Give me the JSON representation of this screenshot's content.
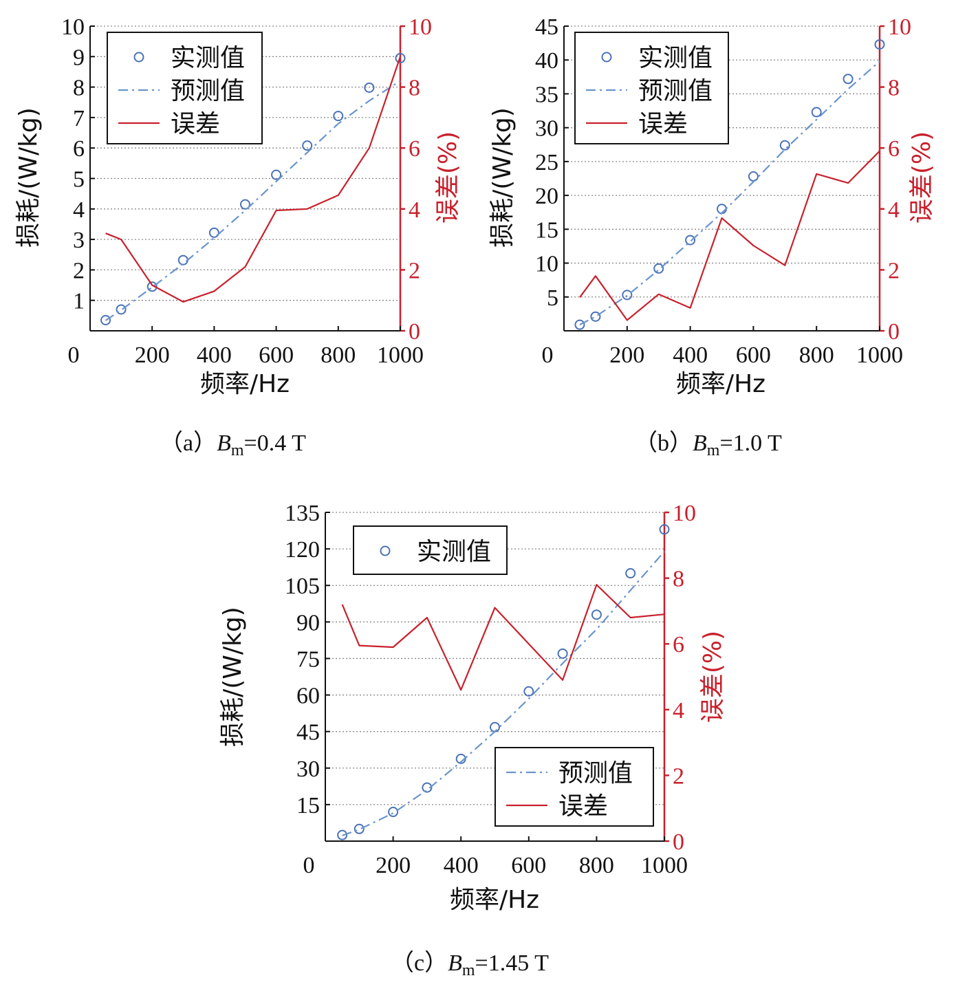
{
  "colors": {
    "measured": "#4a72b8",
    "predicted": "#6a94cc",
    "error": "#c8202c",
    "axis": "#111111",
    "grid": "#888888"
  },
  "legend_labels": {
    "measured": "实测值",
    "predicted": "预测值",
    "error": "误差"
  },
  "chart_data": [
    {
      "id": "a",
      "type": "line",
      "caption_prefix": "（a）",
      "caption_symbol": "B",
      "caption_sub": "m",
      "caption_value": "=0.4 T",
      "xlabel": "频率/Hz",
      "ylabel": "损耗/(W/kg)",
      "y2label": "误差(%)",
      "xlim": [
        0,
        1000
      ],
      "xticks": [
        0,
        200,
        400,
        600,
        800,
        1000
      ],
      "ylim": [
        0,
        10
      ],
      "yticks": [
        1,
        2,
        3,
        4,
        5,
        6,
        7,
        8,
        9,
        10
      ],
      "y2lim": [
        0,
        10
      ],
      "y2ticks": [
        0,
        2,
        4,
        6,
        8,
        10
      ],
      "legend_layout": "single-top-left",
      "series": [
        {
          "name": "实测值",
          "kind": "scatter",
          "axis": "left",
          "x": [
            50,
            100,
            200,
            300,
            400,
            500,
            600,
            700,
            800,
            900,
            1000
          ],
          "y": [
            0.35,
            0.7,
            1.45,
            2.32,
            3.22,
            4.15,
            5.12,
            6.08,
            7.05,
            7.98,
            8.95
          ]
        },
        {
          "name": "预测值",
          "kind": "dashdot",
          "axis": "left",
          "x": [
            50,
            100,
            200,
            300,
            400,
            500,
            600,
            700,
            800,
            900,
            1000
          ],
          "y": [
            0.34,
            0.68,
            1.43,
            2.2,
            3.05,
            3.95,
            4.9,
            5.85,
            6.8,
            7.55,
            8.2
          ]
        },
        {
          "name": "误差",
          "kind": "line",
          "axis": "right",
          "x": [
            50,
            100,
            200,
            300,
            400,
            500,
            600,
            700,
            800,
            900,
            1000
          ],
          "y": [
            3.2,
            3.0,
            1.5,
            0.95,
            1.3,
            2.1,
            3.95,
            4.0,
            4.45,
            6.0,
            9.0
          ]
        }
      ]
    },
    {
      "id": "b",
      "type": "line",
      "caption_prefix": "（b）",
      "caption_symbol": "B",
      "caption_sub": "m",
      "caption_value": "=1.0 T",
      "xlabel": "频率/Hz",
      "ylabel": "损耗/(W/kg)",
      "y2label": "误差(%)",
      "xlim": [
        0,
        1000
      ],
      "xticks": [
        0,
        200,
        400,
        600,
        800,
        1000
      ],
      "ylim": [
        0,
        45
      ],
      "yticks": [
        5,
        10,
        15,
        20,
        25,
        30,
        35,
        40,
        45
      ],
      "y2lim": [
        0,
        10
      ],
      "y2ticks": [
        0,
        2,
        4,
        6,
        8,
        10
      ],
      "legend_layout": "single-top-left",
      "series": [
        {
          "name": "实测值",
          "kind": "scatter",
          "axis": "left",
          "x": [
            50,
            100,
            200,
            300,
            400,
            500,
            600,
            700,
            800,
            900,
            1000
          ],
          "y": [
            0.9,
            2.1,
            5.3,
            9.2,
            13.4,
            18.0,
            22.8,
            27.4,
            32.3,
            37.2,
            42.3
          ]
        },
        {
          "name": "预测值",
          "kind": "dashdot",
          "axis": "left",
          "x": [
            50,
            100,
            200,
            300,
            400,
            500,
            600,
            700,
            800,
            900,
            1000
          ],
          "y": [
            0.9,
            2.1,
            5.2,
            9.0,
            13.2,
            17.4,
            22.0,
            26.8,
            31.2,
            35.7,
            39.8
          ]
        },
        {
          "name": "误差",
          "kind": "line",
          "axis": "right",
          "x": [
            50,
            100,
            200,
            300,
            400,
            500,
            600,
            700,
            800,
            900,
            1000
          ],
          "y": [
            1.1,
            1.8,
            0.35,
            1.2,
            0.75,
            3.7,
            2.8,
            2.15,
            5.15,
            4.85,
            5.9
          ]
        }
      ]
    },
    {
      "id": "c",
      "type": "line",
      "caption_prefix": "（c）",
      "caption_symbol": "B",
      "caption_sub": "m",
      "caption_value": "=1.45 T",
      "xlabel": "频率/Hz",
      "ylabel": "损耗/(W/kg)",
      "y2label": "误差(%)",
      "xlim": [
        0,
        1000
      ],
      "xticks": [
        0,
        200,
        400,
        600,
        800,
        1000
      ],
      "ylim": [
        0,
        135
      ],
      "yticks": [
        15,
        30,
        45,
        60,
        75,
        90,
        105,
        120,
        135
      ],
      "y2lim": [
        0,
        10
      ],
      "y2ticks": [
        0,
        2,
        4,
        6,
        8,
        10
      ],
      "legend_layout": "split",
      "series": [
        {
          "name": "实测值",
          "kind": "scatter",
          "axis": "left",
          "x": [
            50,
            100,
            200,
            300,
            400,
            500,
            600,
            700,
            800,
            900,
            1000
          ],
          "y": [
            2.5,
            5.0,
            12.0,
            22.0,
            33.8,
            46.8,
            61.5,
            77.0,
            93.0,
            110.0,
            128.0
          ]
        },
        {
          "name": "预测值",
          "kind": "dashdot",
          "axis": "left",
          "x": [
            50,
            100,
            200,
            300,
            400,
            500,
            600,
            700,
            800,
            900,
            1000
          ],
          "y": [
            2.3,
            4.8,
            11.5,
            21.0,
            32.5,
            45.0,
            58.5,
            73.0,
            87.0,
            103.0,
            119.0
          ]
        },
        {
          "name": "误差",
          "kind": "line",
          "axis": "right",
          "x": [
            50,
            100,
            200,
            300,
            400,
            500,
            600,
            700,
            800,
            900,
            1000
          ],
          "y": [
            7.2,
            5.95,
            5.9,
            6.8,
            4.6,
            7.1,
            6.0,
            4.9,
            7.8,
            6.8,
            6.9
          ]
        }
      ]
    }
  ]
}
